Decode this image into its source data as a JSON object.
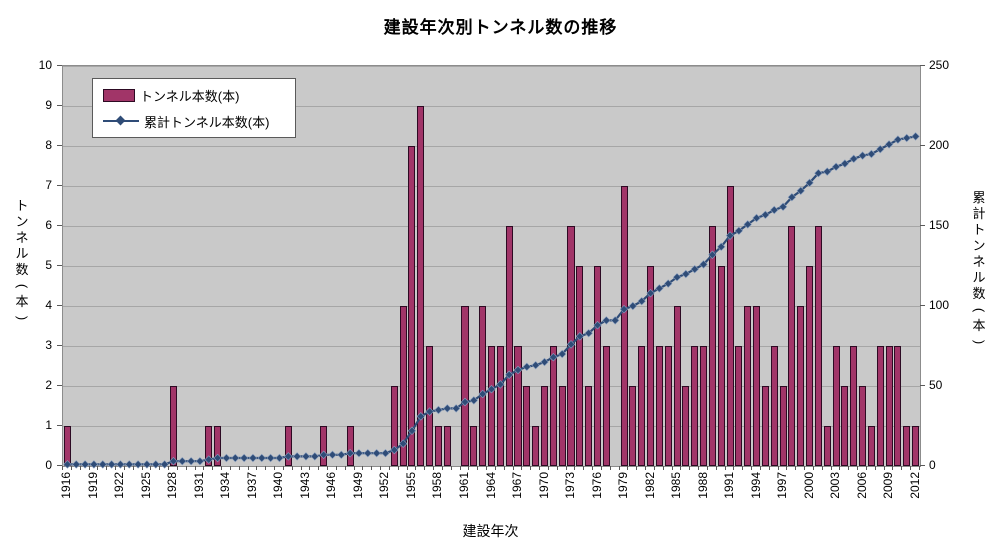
{
  "title": "建設年次別トンネル数の推移",
  "legend": {
    "items": [
      {
        "label": "トンネル本数(本)",
        "marker": "bar-swatch"
      },
      {
        "label": "累計トンネル本数(本)",
        "marker": "line-diamond-swatch"
      }
    ]
  },
  "axes": {
    "left_title": "トンネル数(本)",
    "right_title": "累計トンネル数(本)",
    "x_title": "建設年次",
    "left_ticks": [
      0,
      1,
      2,
      3,
      4,
      5,
      6,
      7,
      8,
      9,
      10
    ],
    "right_ticks": [
      0,
      50,
      100,
      150,
      200,
      250
    ],
    "x_tick_labels": [
      1916,
      1919,
      1922,
      1925,
      1928,
      1931,
      1934,
      1937,
      1940,
      1943,
      1946,
      1949,
      1952,
      1955,
      1958,
      1961,
      1964,
      1967,
      1970,
      1973,
      1976,
      1979,
      1982,
      1985,
      1988,
      1991,
      1994,
      1997,
      2000,
      2003,
      2006,
      2009,
      2012
    ]
  },
  "colors": {
    "bar_fill": "#a13568",
    "bar_border": "#2d0a23",
    "line": "#2f4c77",
    "marker": "#2f4c77",
    "plot_bg": "#c9c9c9",
    "gridline": "#a6a6a6",
    "plot_border": "#8c8c8c",
    "axis_line": "#595959",
    "text": "#000000"
  },
  "chart_data": {
    "type": "combo-bar-line",
    "x": [
      1916,
      1917,
      1918,
      1919,
      1920,
      1921,
      1922,
      1923,
      1924,
      1925,
      1926,
      1927,
      1928,
      1929,
      1930,
      1931,
      1932,
      1933,
      1934,
      1935,
      1936,
      1937,
      1938,
      1939,
      1940,
      1941,
      1942,
      1943,
      1944,
      1945,
      1946,
      1947,
      1948,
      1949,
      1950,
      1951,
      1952,
      1953,
      1954,
      1955,
      1956,
      1957,
      1958,
      1959,
      1960,
      1961,
      1962,
      1963,
      1964,
      1965,
      1966,
      1967,
      1968,
      1969,
      1970,
      1971,
      1972,
      1973,
      1974,
      1975,
      1976,
      1977,
      1978,
      1979,
      1980,
      1981,
      1982,
      1983,
      1984,
      1985,
      1986,
      1987,
      1988,
      1989,
      1990,
      1991,
      1992,
      1993,
      1994,
      1995,
      1996,
      1997,
      1998,
      1999,
      2000,
      2001,
      2002,
      2003,
      2004,
      2005,
      2006,
      2007,
      2008,
      2009,
      2010,
      2011,
      2012
    ],
    "series": [
      {
        "name": "トンネル本数(本)",
        "type": "bar",
        "axis": "left",
        "values": [
          1,
          0,
          0,
          0,
          0,
          0,
          0,
          0,
          0,
          0,
          0,
          0,
          2,
          0,
          0,
          0,
          1,
          1,
          0,
          0,
          0,
          0,
          0,
          0,
          0,
          1,
          0,
          0,
          0,
          1,
          0,
          0,
          1,
          0,
          0,
          0,
          0,
          2,
          4,
          8,
          9,
          3,
          1,
          1,
          0,
          4,
          1,
          4,
          3,
          3,
          6,
          3,
          2,
          1,
          2,
          3,
          2,
          6,
          5,
          2,
          5,
          3,
          0,
          7,
          2,
          3,
          5,
          3,
          3,
          4,
          2,
          3,
          3,
          6,
          5,
          7,
          3,
          4,
          4,
          2,
          3,
          2,
          6,
          4,
          5,
          6,
          1,
          3,
          2,
          3,
          2,
          1,
          3,
          3,
          3,
          1,
          1
        ]
      },
      {
        "name": "累計トンネル本数(本)",
        "type": "line",
        "axis": "right",
        "values": [
          1,
          1,
          1,
          1,
          1,
          1,
          1,
          1,
          1,
          1,
          1,
          1,
          3,
          3,
          3,
          3,
          4,
          5,
          5,
          5,
          5,
          5,
          5,
          5,
          5,
          6,
          6,
          6,
          6,
          7,
          7,
          7,
          8,
          8,
          8,
          8,
          8,
          10,
          14,
          22,
          31,
          34,
          35,
          36,
          36,
          40,
          41,
          45,
          48,
          51,
          57,
          60,
          62,
          63,
          65,
          68,
          70,
          76,
          81,
          83,
          88,
          91,
          91,
          98,
          100,
          103,
          108,
          111,
          114,
          118,
          120,
          123,
          126,
          132,
          137,
          144,
          147,
          151,
          155,
          157,
          160,
          162,
          168,
          172,
          177,
          183,
          184,
          187,
          189,
          192,
          194,
          195,
          198,
          201,
          204,
          205,
          206
        ]
      }
    ],
    "title": "建設年次別トンネル数の推移",
    "xlabel": "建設年次",
    "ylabel_left": "トンネル数(本)",
    "ylabel_right": "累計トンネル数(本)",
    "left_ylim": [
      0,
      10
    ],
    "right_ylim": [
      0,
      250
    ],
    "grid": true,
    "legend_position": "top-left-inside"
  }
}
